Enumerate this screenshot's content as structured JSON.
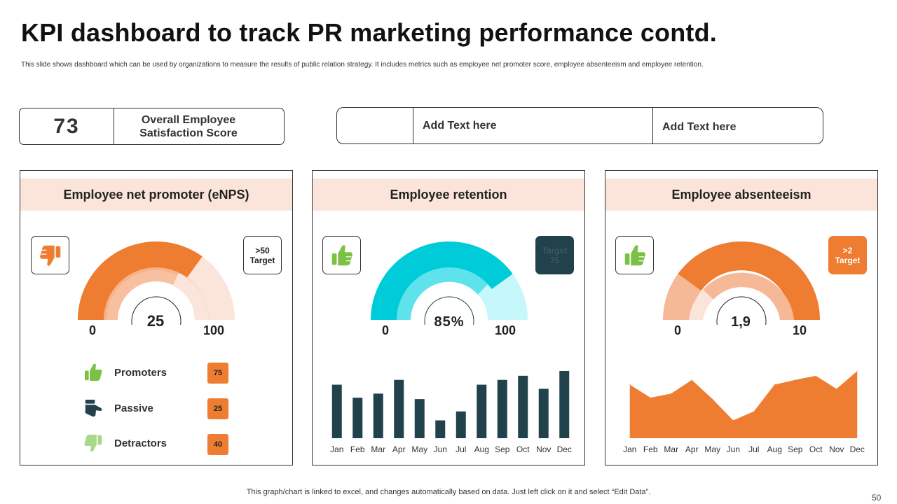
{
  "slide": {
    "title": "KPI dashboard to track PR marketing performance contd.",
    "subtitle": "This slide shows dashboard which can be used by organizations to measure the results of public relation strategy. It includes metrics such as employee net promoter score, employee absenteeism and employee retention.",
    "footer": "This graph/chart is linked to excel,  and changes automatically based on data. Just left click on it and select “Edit Data”.",
    "page_number": "50"
  },
  "kpi": {
    "value": "73",
    "label": "Overall Employee Satisfaction Score"
  },
  "text_box": {
    "cell_1": "",
    "cell_2": "Add Text here",
    "cell_3": "Add Text here"
  },
  "colors": {
    "orange": "#ee7d31",
    "orange_light": "#f6b997",
    "orange_pale": "#fbe5da",
    "cyan": "#00cbd9",
    "cyan_light": "#5ee3ec",
    "cyan_pale": "#c6f7fa",
    "dark": "#22424b",
    "green": "#7bc143",
    "green_light": "#aad88a",
    "panel_head_bg": "#fbe5da"
  },
  "panels": {
    "enps": {
      "title": "Employee net promoter (eNPS)",
      "icon": "thumbs-down-icon",
      "target_line1": ">50",
      "target_line2": "Target",
      "min_label": "0",
      "max_label": "100",
      "center_value": "25",
      "legend": [
        {
          "label": "Promoters",
          "value": "75",
          "icon": "thumbs-up-icon"
        },
        {
          "label": "Passive",
          "value": "25",
          "icon": "thumbs-sideways-icon"
        },
        {
          "label": "Detractors",
          "value": "40",
          "icon": "thumbs-down-icon"
        }
      ]
    },
    "retention": {
      "title": "Employee retention",
      "icon": "thumbs-up-icon",
      "target_line1": "Target",
      "target_line2": "75",
      "min_label": "0",
      "max_label": "100",
      "center_value": "85%"
    },
    "absenteeism": {
      "title": "Employee absenteeism",
      "icon": "thumbs-up-icon",
      "target_line1": ">2",
      "target_line2": "Target",
      "min_label": "0",
      "max_label": "10",
      "center_value": "1,9"
    }
  },
  "chart_data": [
    {
      "type": "gauge",
      "title": "Employee net promoter (eNPS)",
      "value": 25,
      "range": [
        0,
        100
      ],
      "filled_fraction": 0.62,
      "target": ">50"
    },
    {
      "type": "gauge",
      "title": "Employee retention",
      "value": 85,
      "unit": "%",
      "range": [
        0,
        100
      ],
      "filled_fraction": 0.8
    },
    {
      "type": "gauge",
      "title": "Employee absenteeism",
      "value": 1.9,
      "range": [
        0,
        10
      ],
      "filled_fraction": 0.85,
      "target": ">2"
    },
    {
      "type": "bar",
      "title": "Employee retention (monthly)",
      "categories": [
        "Jan",
        "Feb",
        "Mar",
        "Apr",
        "May",
        "Jun",
        "Jul",
        "Aug",
        "Sep",
        "Oct",
        "Nov",
        "Dec"
      ],
      "values": [
        78,
        59,
        65,
        85,
        57,
        26,
        39,
        78,
        85,
        91,
        72,
        98
      ],
      "ylim": [
        0,
        100
      ],
      "grid": false
    },
    {
      "type": "area",
      "title": "Employee absenteeism (monthly)",
      "categories": [
        "Jan",
        "Feb",
        "Mar",
        "Apr",
        "May",
        "Jun",
        "Jul",
        "Aug",
        "Sep",
        "Oct",
        "Nov",
        "Dec"
      ],
      "values": [
        78,
        59,
        65,
        85,
        57,
        26,
        39,
        78,
        85,
        91,
        72,
        98
      ],
      "ylim": [
        0,
        100
      ],
      "grid": false
    }
  ]
}
